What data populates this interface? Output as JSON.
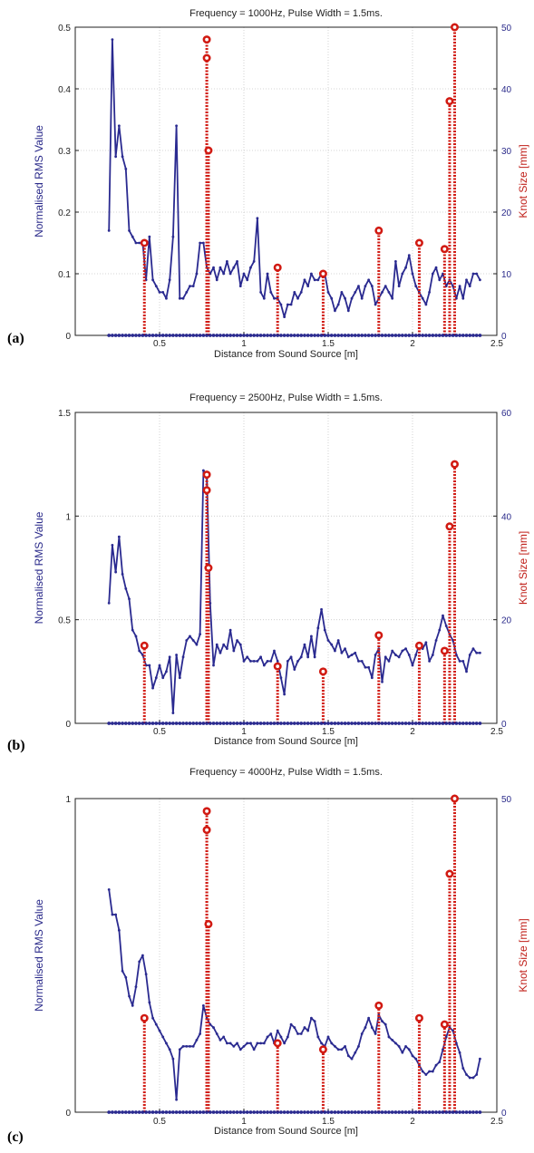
{
  "chart_data": [
    {
      "panel_label": "(a)",
      "type": "line",
      "title": "Frequency = 1000Hz, Pulse Width = 1.5ms.",
      "xlabel": "Distance from Sound Source [m]",
      "ylabel_left": "Normalised RMS Value",
      "ylabel_right": "Knot Size [mm]",
      "xlim": [
        0,
        2.5
      ],
      "ylim_left": [
        0,
        0.5
      ],
      "ylim_right": [
        0,
        50
      ],
      "xticks": [
        "0",
        "0.5",
        "1",
        "1.5",
        "2",
        "2.5"
      ],
      "yticks_left": [
        "0",
        "0.1",
        "0.2",
        "0.3",
        "0.4",
        "0.5"
      ],
      "yticks_right": [
        "0",
        "10",
        "20",
        "30",
        "40",
        "50"
      ],
      "grid": true,
      "series_rms": {
        "x": [
          0.2,
          0.22,
          0.24,
          0.26,
          0.28,
          0.3,
          0.32,
          0.34,
          0.36,
          0.38,
          0.4,
          0.42,
          0.44,
          0.46,
          0.48,
          0.5,
          0.52,
          0.54,
          0.56,
          0.58,
          0.6,
          0.62,
          0.64,
          0.66,
          0.68,
          0.7,
          0.72,
          0.74,
          0.76,
          0.78,
          0.8,
          0.82,
          0.84,
          0.86,
          0.88,
          0.9,
          0.92,
          0.94,
          0.96,
          0.98,
          1.0,
          1.02,
          1.04,
          1.06,
          1.08,
          1.1,
          1.12,
          1.14,
          1.16,
          1.18,
          1.2,
          1.22,
          1.24,
          1.26,
          1.28,
          1.3,
          1.32,
          1.34,
          1.36,
          1.38,
          1.4,
          1.42,
          1.44,
          1.46,
          1.48,
          1.5,
          1.52,
          1.54,
          1.56,
          1.58,
          1.6,
          1.62,
          1.64,
          1.66,
          1.68,
          1.7,
          1.72,
          1.74,
          1.76,
          1.78,
          1.8,
          1.82,
          1.84,
          1.86,
          1.88,
          1.9,
          1.92,
          1.94,
          1.96,
          1.98,
          2.0,
          2.02,
          2.04,
          2.06,
          2.08,
          2.1,
          2.12,
          2.14,
          2.16,
          2.18,
          2.2,
          2.22,
          2.24,
          2.26,
          2.28,
          2.3,
          2.32,
          2.34,
          2.36,
          2.38,
          2.4
        ],
        "y": [
          0.17,
          0.48,
          0.29,
          0.34,
          0.29,
          0.27,
          0.17,
          0.16,
          0.15,
          0.15,
          0.15,
          0.09,
          0.16,
          0.09,
          0.08,
          0.07,
          0.07,
          0.06,
          0.09,
          0.16,
          0.34,
          0.06,
          0.06,
          0.07,
          0.08,
          0.08,
          0.1,
          0.15,
          0.15,
          0.11,
          0.1,
          0.11,
          0.09,
          0.11,
          0.1,
          0.12,
          0.1,
          0.11,
          0.12,
          0.08,
          0.1,
          0.09,
          0.11,
          0.12,
          0.19,
          0.07,
          0.06,
          0.1,
          0.07,
          0.06,
          0.06,
          0.05,
          0.03,
          0.05,
          0.05,
          0.07,
          0.06,
          0.07,
          0.09,
          0.08,
          0.1,
          0.09,
          0.09,
          0.1,
          0.1,
          0.07,
          0.06,
          0.04,
          0.05,
          0.07,
          0.06,
          0.04,
          0.06,
          0.07,
          0.08,
          0.06,
          0.08,
          0.09,
          0.08,
          0.05,
          0.06,
          0.07,
          0.08,
          0.07,
          0.06,
          0.12,
          0.08,
          0.1,
          0.11,
          0.13,
          0.1,
          0.08,
          0.07,
          0.06,
          0.05,
          0.07,
          0.1,
          0.11,
          0.09,
          0.1,
          0.08,
          0.09,
          0.08,
          0.06,
          0.08,
          0.06,
          0.09,
          0.08,
          0.1,
          0.1,
          0.09
        ]
      },
      "knots": [
        {
          "x": 0.41,
          "size": 15
        },
        {
          "x": 0.78,
          "size": 48
        },
        {
          "x": 0.78,
          "size": 45
        },
        {
          "x": 0.79,
          "size": 30
        },
        {
          "x": 1.2,
          "size": 11
        },
        {
          "x": 1.47,
          "size": 10
        },
        {
          "x": 1.8,
          "size": 17
        },
        {
          "x": 2.04,
          "size": 15
        },
        {
          "x": 2.19,
          "size": 14
        },
        {
          "x": 2.22,
          "size": 38
        },
        {
          "x": 2.25,
          "size": 50
        }
      ]
    },
    {
      "panel_label": "(b)",
      "type": "line",
      "title": "Frequency = 2500Hz, Pulse Width = 1.5ms.",
      "xlabel": "Distance from Sound Source [m]",
      "ylabel_left": "Normalised RMS Value",
      "ylabel_right": "Knot Size [mm]",
      "xlim": [
        0,
        2.5
      ],
      "ylim_left": [
        0,
        1.5
      ],
      "ylim_right": [
        0,
        60
      ],
      "xticks": [
        "0",
        "0.5",
        "1",
        "1.5",
        "2",
        "2.5"
      ],
      "yticks_left": [
        "0",
        "0.5",
        "1",
        "1.5"
      ],
      "yticks_right": [
        "0",
        "20",
        "40",
        "60"
      ],
      "grid": true,
      "series_rms": {
        "x": [
          0.2,
          0.22,
          0.24,
          0.26,
          0.28,
          0.3,
          0.32,
          0.34,
          0.36,
          0.38,
          0.4,
          0.42,
          0.44,
          0.46,
          0.48,
          0.5,
          0.52,
          0.54,
          0.56,
          0.58,
          0.6,
          0.62,
          0.64,
          0.66,
          0.68,
          0.7,
          0.72,
          0.74,
          0.76,
          0.78,
          0.8,
          0.82,
          0.84,
          0.86,
          0.88,
          0.9,
          0.92,
          0.94,
          0.96,
          0.98,
          1.0,
          1.02,
          1.04,
          1.06,
          1.08,
          1.1,
          1.12,
          1.14,
          1.16,
          1.18,
          1.2,
          1.22,
          1.24,
          1.26,
          1.28,
          1.3,
          1.32,
          1.34,
          1.36,
          1.38,
          1.4,
          1.42,
          1.44,
          1.46,
          1.48,
          1.5,
          1.52,
          1.54,
          1.56,
          1.58,
          1.6,
          1.62,
          1.64,
          1.66,
          1.68,
          1.7,
          1.72,
          1.74,
          1.76,
          1.78,
          1.8,
          1.82,
          1.84,
          1.86,
          1.88,
          1.9,
          1.92,
          1.94,
          1.96,
          1.98,
          2.0,
          2.02,
          2.04,
          2.06,
          2.08,
          2.1,
          2.12,
          2.14,
          2.16,
          2.18,
          2.2,
          2.22,
          2.24,
          2.26,
          2.28,
          2.3,
          2.32,
          2.34,
          2.36,
          2.38,
          2.4
        ],
        "y": [
          0.58,
          0.86,
          0.73,
          0.9,
          0.72,
          0.65,
          0.6,
          0.45,
          0.42,
          0.35,
          0.33,
          0.28,
          0.28,
          0.17,
          0.22,
          0.28,
          0.22,
          0.25,
          0.32,
          0.05,
          0.33,
          0.22,
          0.32,
          0.4,
          0.42,
          0.4,
          0.38,
          0.43,
          1.22,
          1.2,
          0.58,
          0.28,
          0.38,
          0.34,
          0.38,
          0.36,
          0.45,
          0.35,
          0.4,
          0.38,
          0.3,
          0.32,
          0.3,
          0.3,
          0.3,
          0.32,
          0.28,
          0.3,
          0.3,
          0.35,
          0.3,
          0.22,
          0.14,
          0.3,
          0.32,
          0.26,
          0.3,
          0.32,
          0.38,
          0.32,
          0.42,
          0.32,
          0.46,
          0.55,
          0.45,
          0.4,
          0.38,
          0.35,
          0.4,
          0.34,
          0.36,
          0.32,
          0.33,
          0.34,
          0.3,
          0.3,
          0.27,
          0.27,
          0.22,
          0.33,
          0.36,
          0.2,
          0.32,
          0.3,
          0.35,
          0.33,
          0.32,
          0.35,
          0.36,
          0.33,
          0.28,
          0.33,
          0.38,
          0.36,
          0.39,
          0.3,
          0.33,
          0.4,
          0.45,
          0.52,
          0.47,
          0.43,
          0.4,
          0.33,
          0.3,
          0.3,
          0.25,
          0.33,
          0.36,
          0.34,
          0.34
        ]
      },
      "knots": [
        {
          "x": 0.41,
          "size": 15
        },
        {
          "x": 0.78,
          "size": 48
        },
        {
          "x": 0.78,
          "size": 45
        },
        {
          "x": 0.79,
          "size": 30
        },
        {
          "x": 1.2,
          "size": 11
        },
        {
          "x": 1.47,
          "size": 10
        },
        {
          "x": 1.8,
          "size": 17
        },
        {
          "x": 2.04,
          "size": 15
        },
        {
          "x": 2.19,
          "size": 14
        },
        {
          "x": 2.22,
          "size": 38
        },
        {
          "x": 2.25,
          "size": 50
        }
      ]
    },
    {
      "panel_label": "(c)",
      "type": "line",
      "title": "Frequency = 4000Hz, Pulse Width = 1.5ms.",
      "xlabel": "Distance from Sound Source [m]",
      "ylabel_left": "Normalised RMS Value",
      "ylabel_right": "Knot Size [mm]",
      "xlim": [
        0,
        2.5
      ],
      "ylim_left": [
        0,
        1
      ],
      "ylim_right": [
        0,
        50
      ],
      "xticks": [
        "0",
        "0.5",
        "1",
        "1.5",
        "2",
        "2.5"
      ],
      "yticks_left": [
        "0",
        "1"
      ],
      "yticks_right": [
        "0",
        "50"
      ],
      "grid": true,
      "series_rms": {
        "x": [
          0.2,
          0.22,
          0.24,
          0.26,
          0.28,
          0.3,
          0.32,
          0.34,
          0.36,
          0.38,
          0.4,
          0.42,
          0.44,
          0.46,
          0.48,
          0.5,
          0.52,
          0.54,
          0.56,
          0.58,
          0.6,
          0.62,
          0.64,
          0.66,
          0.68,
          0.7,
          0.72,
          0.74,
          0.76,
          0.78,
          0.8,
          0.82,
          0.84,
          0.86,
          0.88,
          0.9,
          0.92,
          0.94,
          0.96,
          0.98,
          1.0,
          1.02,
          1.04,
          1.06,
          1.08,
          1.1,
          1.12,
          1.14,
          1.16,
          1.18,
          1.2,
          1.22,
          1.24,
          1.26,
          1.28,
          1.3,
          1.32,
          1.34,
          1.36,
          1.38,
          1.4,
          1.42,
          1.44,
          1.46,
          1.48,
          1.5,
          1.52,
          1.54,
          1.56,
          1.58,
          1.6,
          1.62,
          1.64,
          1.66,
          1.68,
          1.7,
          1.72,
          1.74,
          1.76,
          1.78,
          1.8,
          1.82,
          1.84,
          1.86,
          1.88,
          1.9,
          1.92,
          1.94,
          1.96,
          1.98,
          2.0,
          2.02,
          2.04,
          2.06,
          2.08,
          2.1,
          2.12,
          2.14,
          2.16,
          2.18,
          2.2,
          2.22,
          2.24,
          2.26,
          2.28,
          2.3,
          2.32,
          2.34,
          2.36,
          2.38,
          2.4
        ],
        "y": [
          0.71,
          0.63,
          0.63,
          0.58,
          0.45,
          0.43,
          0.37,
          0.34,
          0.4,
          0.48,
          0.5,
          0.44,
          0.35,
          0.3,
          0.28,
          0.26,
          0.24,
          0.22,
          0.2,
          0.17,
          0.04,
          0.2,
          0.21,
          0.21,
          0.21,
          0.21,
          0.23,
          0.25,
          0.34,
          0.3,
          0.28,
          0.27,
          0.25,
          0.23,
          0.24,
          0.22,
          0.22,
          0.21,
          0.22,
          0.2,
          0.21,
          0.22,
          0.22,
          0.2,
          0.22,
          0.22,
          0.22,
          0.24,
          0.25,
          0.22,
          0.26,
          0.24,
          0.22,
          0.24,
          0.28,
          0.27,
          0.25,
          0.25,
          0.27,
          0.26,
          0.3,
          0.29,
          0.24,
          0.22,
          0.21,
          0.24,
          0.22,
          0.21,
          0.2,
          0.2,
          0.21,
          0.18,
          0.17,
          0.19,
          0.21,
          0.25,
          0.27,
          0.3,
          0.27,
          0.25,
          0.31,
          0.29,
          0.28,
          0.24,
          0.23,
          0.22,
          0.21,
          0.19,
          0.21,
          0.2,
          0.18,
          0.17,
          0.15,
          0.13,
          0.12,
          0.13,
          0.13,
          0.15,
          0.16,
          0.2,
          0.24,
          0.27,
          0.26,
          0.22,
          0.19,
          0.14,
          0.12,
          0.11,
          0.11,
          0.12,
          0.17
        ]
      },
      "knots": [
        {
          "x": 0.41,
          "size": 15
        },
        {
          "x": 0.78,
          "size": 48
        },
        {
          "x": 0.78,
          "size": 45
        },
        {
          "x": 0.79,
          "size": 30
        },
        {
          "x": 1.2,
          "size": 11
        },
        {
          "x": 1.47,
          "size": 10
        },
        {
          "x": 1.8,
          "size": 17
        },
        {
          "x": 2.04,
          "size": 15
        },
        {
          "x": 2.19,
          "size": 14
        },
        {
          "x": 2.22,
          "size": 38
        },
        {
          "x": 2.25,
          "size": 50
        }
      ]
    }
  ],
  "colors": {
    "rms_line": "#2a2a90",
    "knot_stem": "#d11a12",
    "right_axis_label": "#c0201a",
    "left_axis_label": "#2a2a8a"
  }
}
